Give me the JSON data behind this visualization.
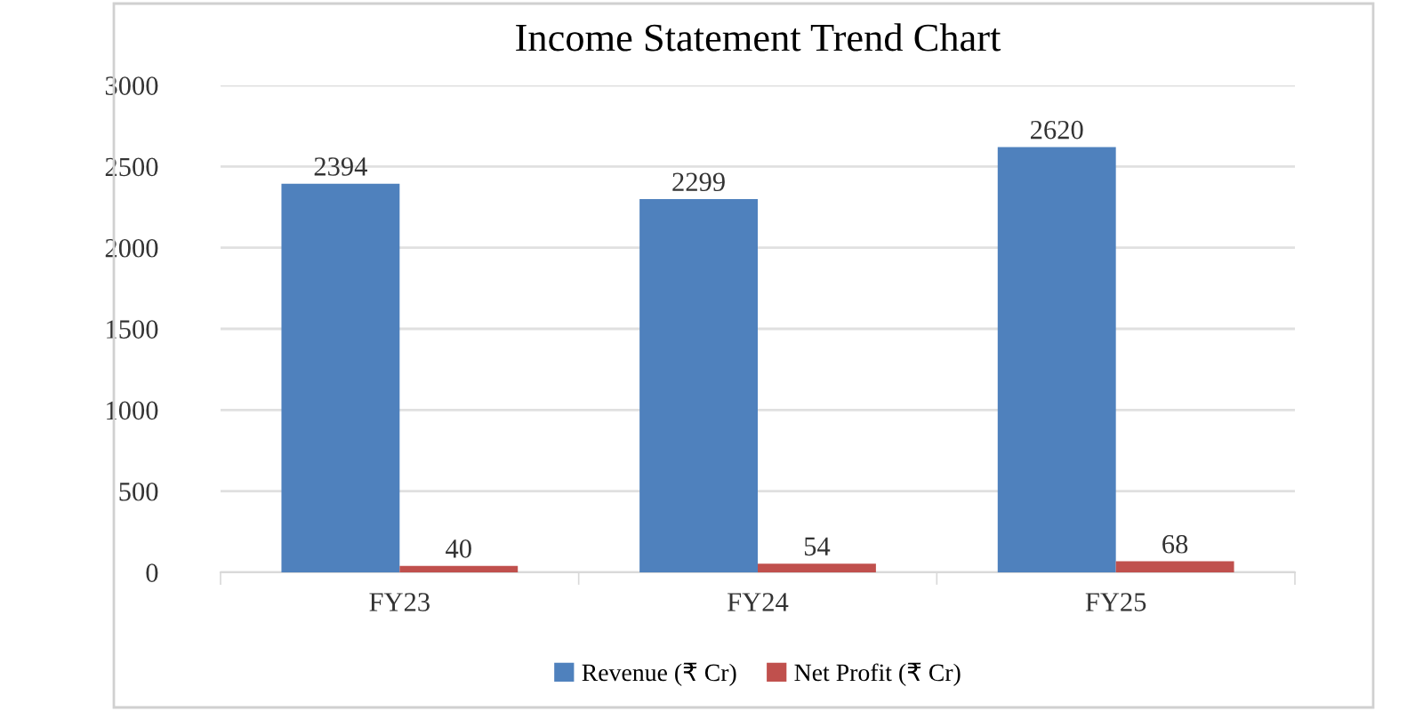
{
  "chart_data": {
    "type": "bar",
    "title": "Income Statement Trend Chart",
    "categories": [
      "FY23",
      "FY24",
      "FY25"
    ],
    "series": [
      {
        "name": "Revenue (₹ Cr)",
        "color": "#4f81bd",
        "values": [
          2394,
          2299,
          2620
        ]
      },
      {
        "name": "Net Profit (₹ Cr)",
        "color": "#c0504d",
        "values": [
          40,
          54,
          68
        ]
      }
    ],
    "ylim": [
      0,
      3000
    ],
    "yticks": [
      0,
      500,
      1000,
      1500,
      2000,
      2500,
      3000
    ],
    "grid": "y",
    "legend": "bottom",
    "data_labels": true
  }
}
